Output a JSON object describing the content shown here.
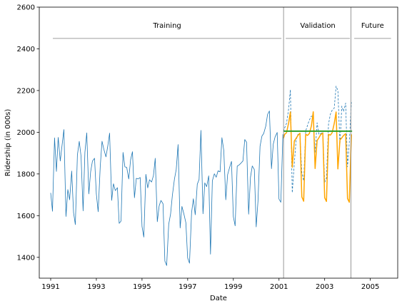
{
  "chart_data": {
    "type": "line",
    "xlabel": "Date",
    "ylabel": "Ridership (in 000s)",
    "xlim": [
      1990.5,
      2006.2
    ],
    "ylim": [
      1300,
      2600
    ],
    "x_ticks": [
      1991,
      1993,
      1995,
      1997,
      1999,
      2001,
      2003,
      2005
    ],
    "y_ticks": [
      1400,
      1600,
      1800,
      2000,
      2200,
      2400,
      2600
    ],
    "grid": false,
    "legend": "none",
    "colors": {
      "actual": "#1f77b4",
      "forecast": "#ffa500",
      "trend": "#2ca02c",
      "divider": "#7f7f7f",
      "region_line": "#7f7f7f"
    },
    "regions": [
      {
        "label": "Training",
        "x0": 1991.0,
        "x1": 2001.2
      },
      {
        "label": "Validation",
        "x0": 2001.2,
        "x1": 2004.2
      },
      {
        "label": "Future",
        "x0": 2004.2,
        "x1": 2006.0
      }
    ],
    "region_line_y": 2450,
    "dividers": [
      2001.2,
      2004.15
    ],
    "series": [
      {
        "style": "solid",
        "color": "#1f77b4",
        "x": [
          1991.0,
          1991.08,
          1991.17,
          1991.25,
          1991.33,
          1991.42,
          1991.5,
          1991.58,
          1991.67,
          1991.75,
          1991.83,
          1991.92,
          1992.0,
          1992.08,
          1992.17,
          1992.25,
          1992.33,
          1992.42,
          1992.5,
          1992.58,
          1992.67,
          1992.75,
          1992.83,
          1992.92,
          1993.0,
          1993.08,
          1993.17,
          1993.25,
          1993.33,
          1993.42,
          1993.5,
          1993.58,
          1993.67,
          1993.75,
          1993.83,
          1993.92,
          1994.0,
          1994.08,
          1994.17,
          1994.25,
          1994.33,
          1994.42,
          1994.5,
          1994.58,
          1994.67,
          1994.75,
          1994.83,
          1994.92,
          1995.0,
          1995.08,
          1995.17,
          1995.25,
          1995.33,
          1995.42,
          1995.5,
          1995.58,
          1995.67,
          1995.75,
          1995.83,
          1995.92,
          1996.0,
          1996.08,
          1996.17,
          1996.25,
          1996.33,
          1996.42,
          1996.5,
          1996.58,
          1996.67,
          1996.75,
          1996.83,
          1996.92,
          1997.0,
          1997.08,
          1997.17,
          1997.25,
          1997.33,
          1997.42,
          1997.5,
          1997.58,
          1997.67,
          1997.75,
          1997.83,
          1997.92,
          1998.0,
          1998.08,
          1998.17,
          1998.25,
          1998.33,
          1998.42,
          1998.5,
          1998.58,
          1998.67,
          1998.75,
          1998.83,
          1998.92,
          1999.0,
          1999.08,
          1999.17,
          1999.25,
          1999.33,
          1999.42,
          1999.5,
          1999.58,
          1999.67,
          1999.75,
          1999.83,
          1999.92,
          2000.0,
          2000.08,
          2000.17,
          2000.25,
          2000.33,
          2000.42,
          2000.5,
          2000.58,
          2000.67,
          2000.75,
          2000.83,
          2000.92,
          2001.0,
          2001.08,
          2001.17
        ],
        "y": [
          1709,
          1621,
          1973,
          1812,
          1975,
          1862,
          1940,
          2013,
          1596,
          1725,
          1676,
          1814,
          1615,
          1557,
          1891,
          1956,
          1885,
          1623,
          1903,
          1997,
          1704,
          1810,
          1862,
          1875,
          1705,
          1619,
          1837,
          1957,
          1917,
          1882,
          1933,
          1996,
          1673,
          1753,
          1720,
          1734,
          1563,
          1574,
          1903,
          1834,
          1831,
          1776,
          1868,
          1907,
          1686,
          1779,
          1776,
          1783,
          1548,
          1497,
          1798,
          1733,
          1772,
          1761,
          1792,
          1875,
          1571,
          1647,
          1673,
          1657,
          1382,
          1361,
          1559,
          1608,
          1697,
          1775,
          1821,
          1941,
          1541,
          1644,
          1610,
          1566,
          1397,
          1372,
          1614,
          1681,
          1604,
          1751,
          1773,
          2009,
          1609,
          1757,
          1739,
          1791,
          1415,
          1767,
          1801,
          1784,
          1815,
          1810,
          1974,
          1913,
          1676,
          1797,
          1828,
          1860,
          1595,
          1551,
          1837,
          1843,
          1851,
          1862,
          1965,
          1952,
          1607,
          1784,
          1838,
          1821,
          1546,
          1669,
          1933,
          1981,
          1994,
          2029,
          2085,
          2102,
          1825,
          1943,
          1978,
          1999,
          1680,
          1664,
          1990
        ]
      },
      {
        "style": "dashed",
        "color": "#1f77b4",
        "x": [
          2001.2,
          2001.25,
          2001.33,
          2001.42,
          2001.5,
          2001.58,
          2001.67,
          2001.75,
          2001.83,
          2001.92,
          2002.0,
          2002.08,
          2002.17,
          2002.25,
          2002.33,
          2002.42,
          2002.5,
          2002.58,
          2002.67,
          2002.75,
          2002.83,
          2002.92,
          2003.0,
          2003.08,
          2003.17,
          2003.25,
          2003.33,
          2003.42,
          2003.5,
          2003.58,
          2003.67,
          2003.75,
          2003.83,
          2003.92,
          2004.0,
          2004.08,
          2004.17
        ],
        "y": [
          2003,
          2021,
          2043,
          2111,
          2204,
          1710,
          1853,
          1962,
          1990,
          1986,
          1807,
          1767,
          2006,
          2033,
          2059,
          2077,
          2076,
          1902,
          2045,
          1989,
          1993,
          2001,
          1760,
          1780,
          2039,
          2087,
          2106,
          2116,
          2221,
          2200,
          1944,
          2125,
          2100,
          2140,
          1834,
          1950,
          2144
        ]
      },
      {
        "style": "solid",
        "color": "#ffa500",
        "x": [
          2001.2,
          2001.25,
          2001.33,
          2001.42,
          2001.5,
          2001.58,
          2001.67,
          2001.75,
          2001.83,
          2001.92,
          2002.0,
          2002.08,
          2002.17,
          2002.25,
          2002.33,
          2002.42,
          2002.5,
          2002.58,
          2002.67,
          2002.75,
          2002.83,
          2002.92,
          2003.0,
          2003.08,
          2003.17,
          2003.25,
          2003.33,
          2003.42,
          2003.5,
          2003.58,
          2003.67,
          2003.75,
          2003.83,
          2003.92,
          2004.0,
          2004.08,
          2004.17
        ],
        "y": [
          1972,
          1990,
          1998,
          2044,
          2097,
          1832,
          1958,
          1971,
          1985,
          1995,
          1690,
          1669,
          1990,
          1985,
          1994,
          2030,
          2098,
          1826,
          1960,
          1974,
          1989,
          1996,
          1686,
          1668,
          1990,
          1986,
          1998,
          2042,
          2097,
          1824,
          1963,
          1973,
          1985,
          1993,
          1682,
          1664,
          1990
        ]
      },
      {
        "style": "solid",
        "color": "#2ca02c",
        "width": 2,
        "x": [
          2001.2,
          2004.2
        ],
        "y": [
          2005,
          2005
        ]
      }
    ]
  }
}
